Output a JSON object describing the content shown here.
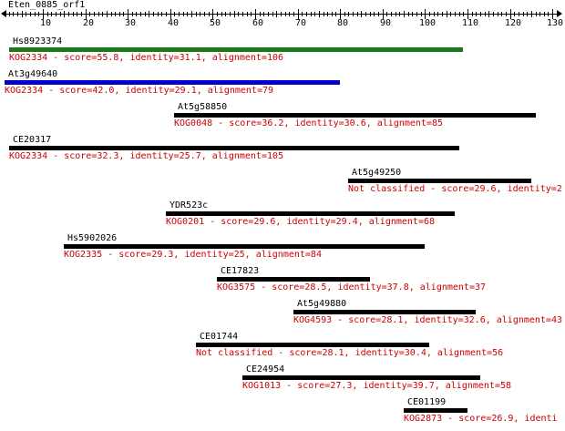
{
  "query": {
    "name": "Eten_0885_orf1",
    "length": 130
  },
  "axis": {
    "min": 1,
    "max": 131,
    "tick_labels": [
      "10",
      "20",
      "30",
      "40",
      "50",
      "60",
      "70",
      "80",
      "90",
      "100",
      "110",
      "120",
      "130"
    ]
  },
  "colors": {
    "text": "#000000",
    "description": "#cc0000"
  },
  "hits": [
    {
      "name": "Hs8923374",
      "start": 2,
      "end": 109,
      "color": "#1a7a1a",
      "description": "KOG2334 - score=55.8, identity=31.1, alignment=106"
    },
    {
      "name": "At3g49640",
      "start": 1,
      "end": 80,
      "color": "#0000cc",
      "description": "KOG2334 - score=42.0, identity=29.1, alignment=79"
    },
    {
      "name": "At5g58850",
      "start": 41,
      "end": 126,
      "color": "#000000",
      "description": "KOG0048 - score=36.2, identity=30.6, alignment=85"
    },
    {
      "name": "CE20317",
      "start": 2,
      "end": 108,
      "color": "#000000",
      "description": "KOG2334 - score=32.3, identity=25.7, alignment=105"
    },
    {
      "name": "At5g49250",
      "start": 82,
      "end": 125,
      "color": "#000000",
      "description": "Not classified - score=29.6, identity=2"
    },
    {
      "name": "YDR523c",
      "start": 39,
      "end": 107,
      "color": "#000000",
      "description": "KOG0201 - score=29.6, identity=29.4, alignment=68"
    },
    {
      "name": "Hs5902026",
      "start": 15,
      "end": 100,
      "color": "#000000",
      "description": "KOG2335 - score=29.3, identity=25, alignment=84"
    },
    {
      "name": "CE17823",
      "start": 51,
      "end": 87,
      "color": "#000000",
      "description": "KOG3575 - score=28.5, identity=37.8, alignment=37"
    },
    {
      "name": "At5g49880",
      "start": 69,
      "end": 112,
      "color": "#000000",
      "description": "KOG4593 - score=28.1, identity=32.6, alignment=43"
    },
    {
      "name": "CE01744",
      "start": 46,
      "end": 101,
      "color": "#000000",
      "description": "Not classified - score=28.1, identity=30.4, alignment=56"
    },
    {
      "name": "CE24954",
      "start": 57,
      "end": 113,
      "color": "#000000",
      "description": "KOG1013 - score=27.3, identity=39.7, alignment=58"
    },
    {
      "name": "CE01199",
      "start": 95,
      "end": 110,
      "color": "#000000",
      "description": "KOG2873 - score=26.9, identi"
    }
  ]
}
